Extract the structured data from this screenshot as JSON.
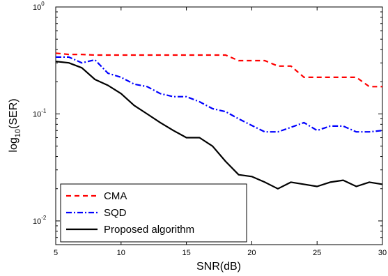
{
  "chart_data": {
    "type": "line",
    "xlabel": "SNR(dB)",
    "ylabel_main": "log",
    "ylabel_sub": "10",
    "ylabel_rest": "(SER)",
    "y_scale": "log",
    "xlim": [
      5,
      30
    ],
    "ylim": [
      0.006,
      1
    ],
    "x_ticks": [
      5,
      10,
      15,
      20,
      25,
      30
    ],
    "x_tick_labels": [
      "5",
      "10",
      "15",
      "20",
      "25",
      "30"
    ],
    "y_ticks": [
      0.01,
      0.1,
      1
    ],
    "y_tick_labels": [
      {
        "base": "10",
        "exp": "-2"
      },
      {
        "base": "10",
        "exp": "-1"
      },
      {
        "base": "10",
        "exp": "0"
      }
    ],
    "grid": false,
    "legend_position": "bottom-left",
    "x": [
      5,
      6,
      7,
      8,
      9,
      10,
      11,
      12,
      13,
      14,
      15,
      16,
      17,
      18,
      19,
      20,
      21,
      22,
      23,
      24,
      25,
      26,
      27,
      28,
      29,
      30
    ],
    "series": [
      {
        "name": "CMA",
        "color": "#ff0000",
        "style": "dashed",
        "values": [
          0.37,
          0.36,
          0.36,
          0.355,
          0.355,
          0.355,
          0.355,
          0.355,
          0.355,
          0.355,
          0.355,
          0.355,
          0.355,
          0.355,
          0.315,
          0.315,
          0.315,
          0.28,
          0.28,
          0.22,
          0.22,
          0.22,
          0.22,
          0.22,
          0.18,
          0.18
        ]
      },
      {
        "name": "SQD",
        "color": "#0000ff",
        "style": "dashdot",
        "values": [
          0.34,
          0.34,
          0.3,
          0.32,
          0.24,
          0.22,
          0.19,
          0.18,
          0.155,
          0.145,
          0.145,
          0.13,
          0.112,
          0.105,
          0.09,
          0.078,
          0.068,
          0.068,
          0.075,
          0.083,
          0.07,
          0.077,
          0.077,
          0.068,
          0.068,
          0.07
        ]
      },
      {
        "name": "Proposed algorithm",
        "color": "#000000",
        "style": "solid",
        "values": [
          0.31,
          0.3,
          0.27,
          0.21,
          0.185,
          0.155,
          0.12,
          0.1,
          0.083,
          0.07,
          0.06,
          0.06,
          0.05,
          0.036,
          0.027,
          0.026,
          0.023,
          0.02,
          0.023,
          0.022,
          0.021,
          0.023,
          0.024,
          0.021,
          0.023,
          0.022
        ]
      }
    ]
  }
}
